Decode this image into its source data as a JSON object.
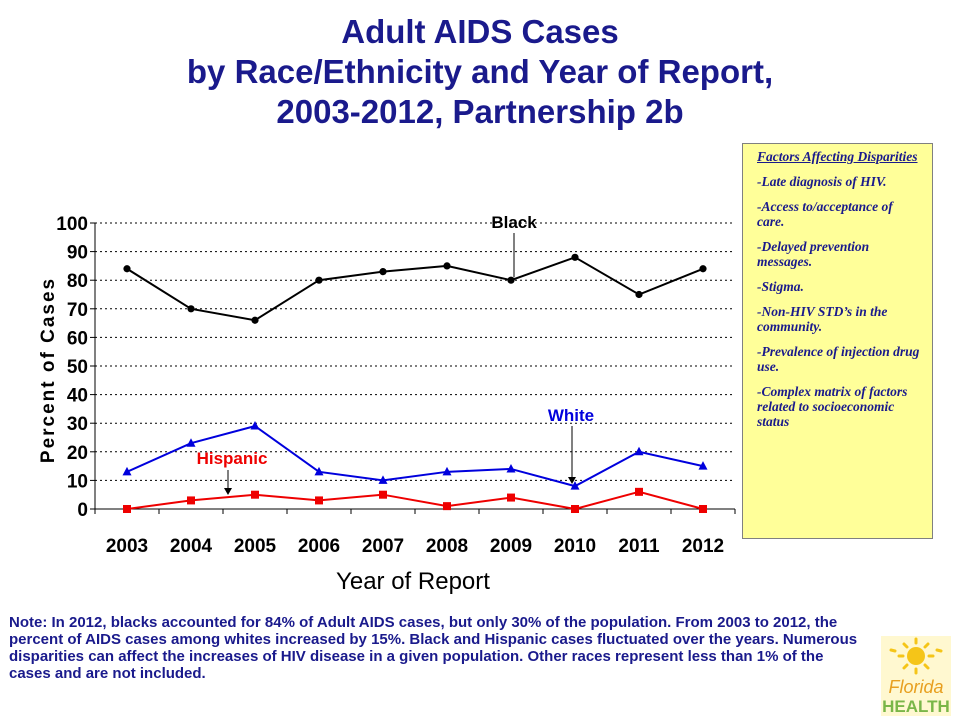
{
  "title": {
    "line1": "Adult AIDS Cases",
    "line2": "by Race/Ethnicity and Year of Report,",
    "line3": "2003-2012, Partnership 2b"
  },
  "chart_data": {
    "type": "line",
    "xlabel": "Year of Report",
    "ylabel": "Percent of Cases",
    "ylim": [
      0,
      100
    ],
    "yticks": [
      0,
      10,
      20,
      30,
      40,
      50,
      60,
      70,
      80,
      90,
      100
    ],
    "grid": "horizontal dotted",
    "categories": [
      "2003",
      "2004",
      "2005",
      "2006",
      "2007",
      "2008",
      "2009",
      "2010",
      "2011",
      "2012"
    ],
    "series": [
      {
        "name": "Black",
        "color": "#000000",
        "marker": "circle",
        "values": [
          84,
          70,
          66,
          80,
          83,
          85,
          80,
          88,
          75,
          84
        ]
      },
      {
        "name": "White",
        "color": "#0000dd",
        "marker": "triangle",
        "values": [
          13,
          23,
          29,
          13,
          10,
          13,
          14,
          8,
          20,
          15
        ]
      },
      {
        "name": "Hispanic",
        "color": "#ee0000",
        "marker": "square",
        "values": [
          0,
          3,
          5,
          3,
          5,
          1,
          4,
          0,
          6,
          0
        ]
      }
    ]
  },
  "factors": {
    "heading": "Factors Affecting Disparities",
    "items": [
      "-Late diagnosis of HIV.",
      "-Access to/acceptance of care.",
      "-Delayed prevention messages.",
      "-Stigma.",
      "-Non-HIV STD’s in the community.",
      "-Prevalence of injection drug use.",
      "-Complex matrix of factors related to socioeconomic status"
    ]
  },
  "note": "Note:  In 2012, blacks accounted for 84% of Adult AIDS cases, but only 30% of the population.  From 2003 to 2012, the percent of AIDS cases among whites increased by 15%.  Black and Hispanic cases fluctuated over the years.  Numerous disparities can affect the increases of HIV disease in a given population. Other races represent less than 1% of the cases and are not included.",
  "logo": {
    "line1": "Florida",
    "line2": "HEALTH",
    "colors": {
      "sun": "#f5c518",
      "green": "#7ab648"
    }
  }
}
